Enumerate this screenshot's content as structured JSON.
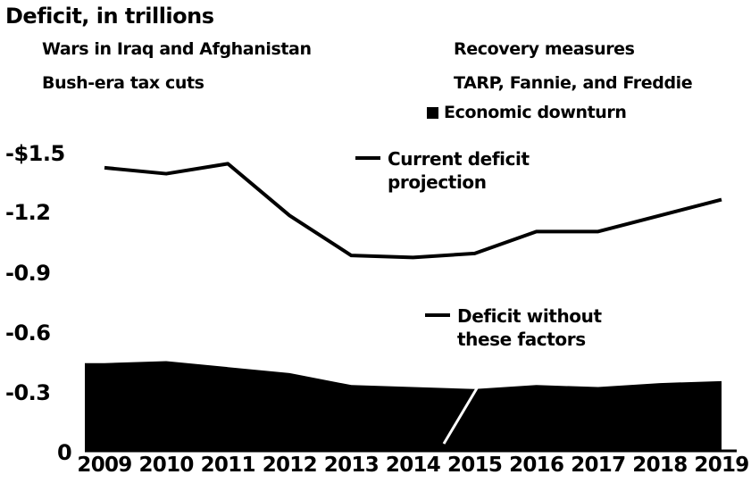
{
  "title": "Deficit, in trillions",
  "legend": [
    {
      "label": "Wars in Iraq and Afghanistan"
    },
    {
      "label": "Bush-era tax cuts"
    },
    {
      "label": "Recovery measures"
    },
    {
      "label": "TARP, Fannie, and Freddie"
    },
    {
      "label": "Economic downturn",
      "color": "#000000"
    }
  ],
  "annotations": {
    "current_line1": "Current deficit",
    "current_line2": "projection",
    "without_line1": "Deficit without",
    "without_line2": "these factors"
  },
  "chart_data": {
    "type": "line",
    "x": [
      "2009",
      "2010",
      "2011",
      "2012",
      "2013",
      "2014",
      "2015",
      "2016",
      "2017",
      "2018",
      "2019"
    ],
    "y_tick_labels": [
      "0",
      "-0.3",
      "-0.6",
      "-0.9",
      "-1.2",
      "-$1.5"
    ],
    "y_tick_values": [
      0,
      0.3,
      0.6,
      0.9,
      1.2,
      1.5
    ],
    "ylim": [
      0,
      1.5
    ],
    "series": [
      {
        "name": "Current deficit projection",
        "color": "#000000",
        "style": "line",
        "values": [
          1.42,
          1.39,
          1.44,
          1.18,
          0.98,
          0.97,
          0.99,
          1.1,
          1.1,
          1.18,
          1.26
        ]
      },
      {
        "name": "Economic downturn",
        "color": "#000000",
        "style": "area",
        "values": [
          0.44,
          0.45,
          0.42,
          0.39,
          0.33,
          0.32,
          0.31,
          0.33,
          0.32,
          0.34,
          0.35
        ]
      }
    ]
  }
}
